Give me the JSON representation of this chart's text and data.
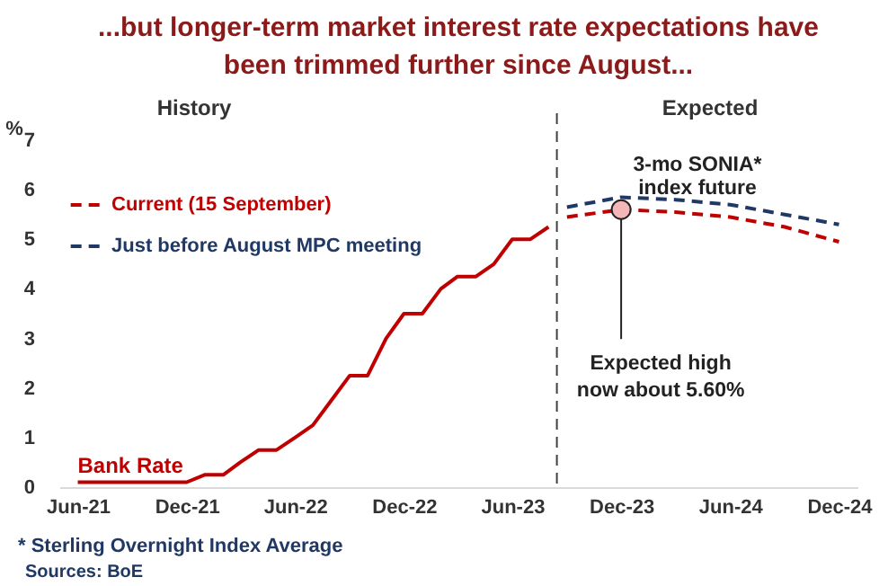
{
  "chart_data": {
    "type": "line",
    "title": "...but longer-term market interest rate expectations have been trimmed further since August...",
    "ylabel": "%",
    "xlim": [
      "2021-05",
      "2025-01"
    ],
    "xticks": [
      {
        "value": "2021-06",
        "label": "Jun-21"
      },
      {
        "value": "2021-12",
        "label": "Dec-21"
      },
      {
        "value": "2022-06",
        "label": "Jun-22"
      },
      {
        "value": "2022-12",
        "label": "Dec-22"
      },
      {
        "value": "2023-06",
        "label": "Jun-23"
      },
      {
        "value": "2023-12",
        "label": "Dec-23"
      },
      {
        "value": "2024-06",
        "label": "Jun-24"
      },
      {
        "value": "2024-12",
        "label": "Dec-24"
      }
    ],
    "ylim": [
      0,
      7
    ],
    "yticks": [
      0,
      1,
      2,
      3,
      4,
      5,
      6,
      7
    ],
    "grid": false,
    "legend": "top left",
    "line_style": "solid",
    "series": [
      {
        "name": "Bank Rate",
        "color": "#c00000",
        "x": [
          "2021-06",
          "2021-07",
          "2021-08",
          "2021-09",
          "2021-10",
          "2021-11",
          "2021-12",
          "2022-01",
          "2022-02",
          "2022-03",
          "2022-04",
          "2022-05",
          "2022-06",
          "2022-07",
          "2022-08",
          "2022-09",
          "2022-10",
          "2022-11",
          "2022-12",
          "2023-01",
          "2023-02",
          "2023-03",
          "2023-04",
          "2023-05",
          "2023-06",
          "2023-07",
          "2023-08"
        ],
        "values": [
          0.1,
          0.1,
          0.1,
          0.1,
          0.1,
          0.1,
          0.1,
          0.25,
          0.25,
          0.5,
          0.75,
          0.75,
          1.0,
          1.25,
          1.75,
          2.25,
          2.25,
          3.0,
          3.5,
          3.5,
          4.0,
          4.25,
          4.25,
          4.5,
          5.0,
          5.0,
          5.25
        ]
      },
      {
        "name": "Current (15 September)",
        "color": "#c00000",
        "line_style": "dashed",
        "x": [
          "2023-09",
          "2023-12",
          "2024-03",
          "2024-06",
          "2024-09",
          "2024-12"
        ],
        "values": [
          5.45,
          5.6,
          5.55,
          5.45,
          5.25,
          4.95
        ]
      },
      {
        "name": "Just before August MPC meeting",
        "color": "#1f3864",
        "line_style": "dashed",
        "x": [
          "2023-09",
          "2023-12",
          "2024-03",
          "2024-06",
          "2024-09",
          "2024-12"
        ],
        "values": [
          5.65,
          5.85,
          5.8,
          5.7,
          5.5,
          5.3
        ]
      }
    ],
    "ref_lines": [
      {
        "axis": "x",
        "value": "2023-08-15",
        "color": "#404040",
        "line_style": "dashed"
      }
    ],
    "annotations": [
      "History",
      "Expected",
      "3-mo SONIA* index future",
      {
        "text": "Expected high now about 5.60%",
        "x": "2023-12",
        "y": 5.6
      },
      "* Sterling Overnight Index Average",
      "Sources: BoE"
    ]
  }
}
